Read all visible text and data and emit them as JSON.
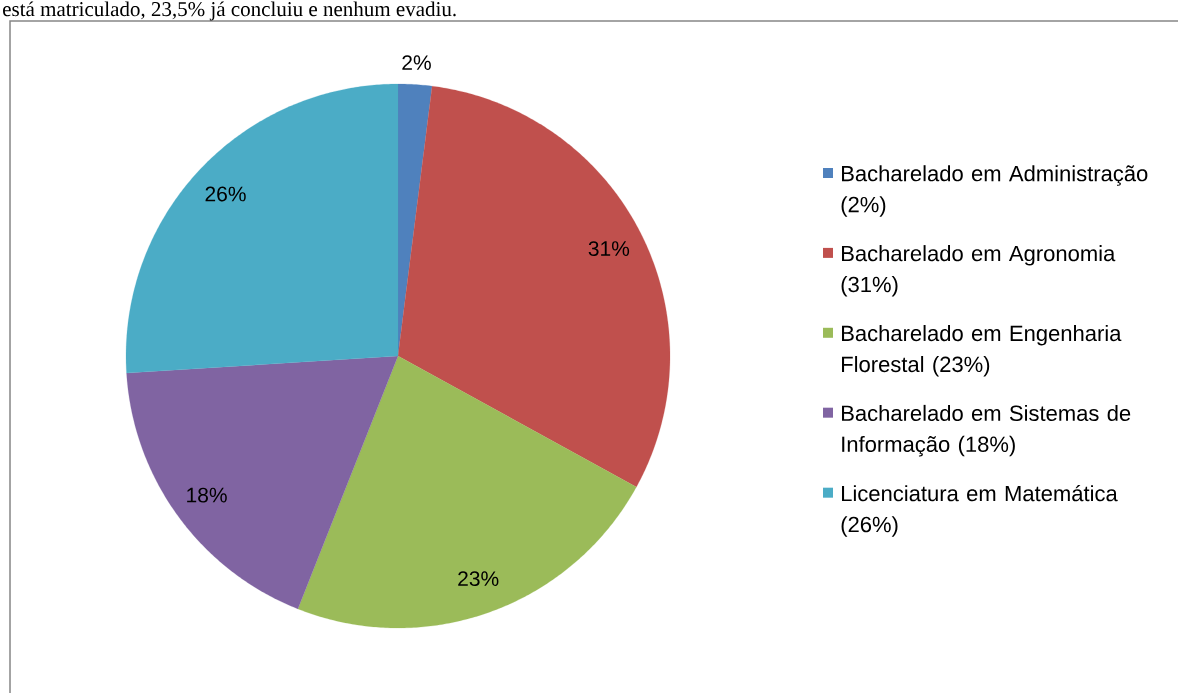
{
  "chart_data": {
    "type": "pie",
    "annotations": [
      "está matriculado, 23,5% já concluiu e nenhum evadiu."
    ],
    "categories": [
      "Bacharelado em Administração (2%)",
      "Bacharelado em Agronomia (31%)",
      "Bacharelado em Engenharia Florestal (23%)",
      "Bacharelado em Sistemas de Informação (18%)",
      "Licenciatura em Matemática (26%)"
    ],
    "values": [
      2,
      31,
      23,
      18,
      26
    ],
    "colors": [
      "#4f81bd",
      "#c0504d",
      "#9bbb59",
      "#8064a2",
      "#4bacc6"
    ],
    "value_labels": [
      "2%",
      "31%",
      "23%",
      "18%",
      "26%"
    ],
    "legend": "right"
  }
}
